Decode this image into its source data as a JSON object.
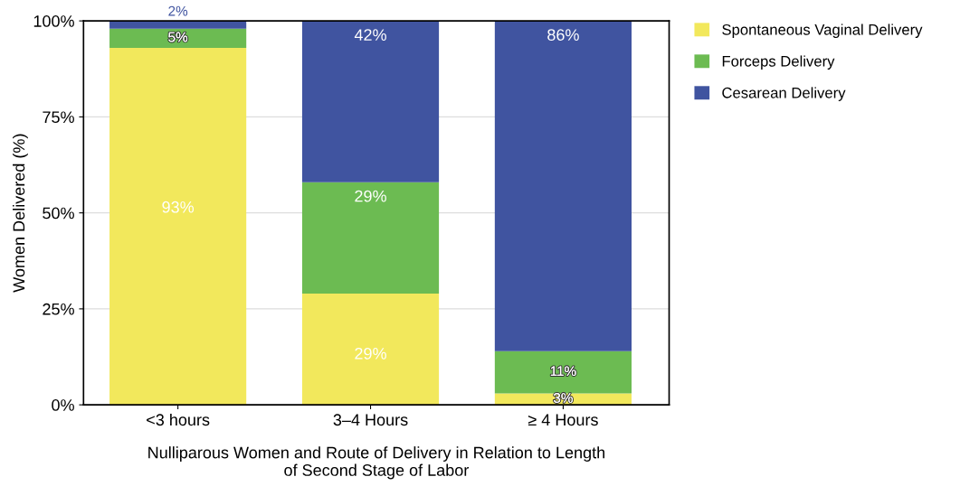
{
  "chart_data": {
    "type": "bar",
    "stacked": true,
    "categories": [
      "<3 hours",
      "3–4 Hours",
      "≥ 4 Hours"
    ],
    "xlabel": "Nulliparous Women and Route of Delivery in Relation to Length\nof Second Stage of Labor",
    "ylabel": "Women Delivered (%)",
    "ylim": [
      0,
      100
    ],
    "yticks": [
      {
        "value": 0,
        "label": "0%"
      },
      {
        "value": 25,
        "label": "25%"
      },
      {
        "value": 50,
        "label": "50%"
      },
      {
        "value": 75,
        "label": "75%"
      },
      {
        "value": 100,
        "label": "100%"
      }
    ],
    "grid": "y",
    "legend": "right",
    "series": [
      {
        "name": "Spontaneous Vaginal Delivery",
        "color": "#f2e85c",
        "values": [
          93,
          29,
          3
        ],
        "value_labels": [
          "93%",
          "29%",
          "3%"
        ]
      },
      {
        "name": "Forceps Delivery",
        "color": "#6cbb52",
        "values": [
          5,
          29,
          11
        ],
        "value_labels": [
          "5%",
          "29%",
          "11%"
        ]
      },
      {
        "name": "Cesarean Delivery",
        "color": "#4054a0",
        "values": [
          2,
          42,
          86
        ],
        "value_labels": [
          "2%",
          "42%",
          "86%"
        ]
      }
    ]
  }
}
